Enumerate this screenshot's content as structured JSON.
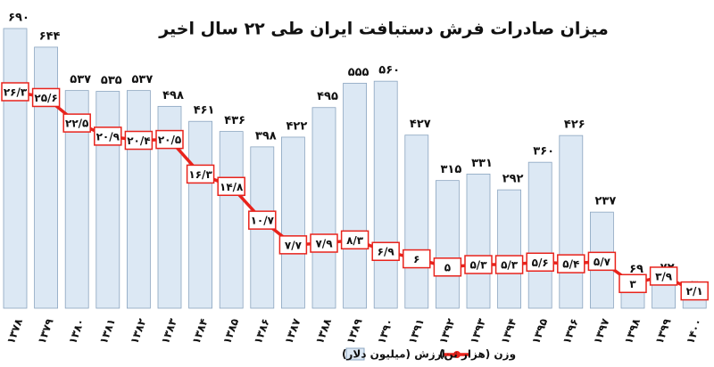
{
  "chart_data": {
    "type": "bar-line",
    "title": "میزان صادرات فرش دستبافت ایران طی ۲۲ سال اخیر",
    "categories": [
      "۱۳۷۸",
      "۱۳۷۹",
      "۱۳۸۰",
      "۱۳۸۱",
      "۱۳۸۲",
      "۱۳۸۳",
      "۱۳۸۴",
      "۱۳۸۵",
      "۱۳۸۶",
      "۱۳۸۷",
      "۱۳۸۸",
      "۱۳۸۹",
      "۱۳۹۰",
      "۱۳۹۱",
      "۱۳۹۲",
      "۱۳۹۳",
      "۱۳۹۴",
      "۱۳۹۵",
      "۱۳۹۶",
      "۱۳۹۷",
      "۱۳۹۸",
      "۱۳۹۹",
      "۱۴۰۰"
    ],
    "series": [
      {
        "name": "ارزش (میلیون دلار)",
        "color": "#dce8f4",
        "values": [
          690,
          644,
          537,
          535,
          537,
          498,
          461,
          436,
          398,
          422,
          495,
          555,
          560,
          427,
          315,
          331,
          292,
          360,
          426,
          237,
          69,
          72,
          30
        ],
        "value_labels": [
          "۶۹۰",
          "۶۴۴",
          "۵۳۷",
          "۵۳۵",
          "۵۳۷",
          "۴۹۸",
          "۴۶۱",
          "۴۳۶",
          "۳۹۸",
          "۴۲۲",
          "۴۹۵",
          "۵۵۵",
          "۵۶۰",
          "۴۲۷",
          "۳۱۵",
          "۳۳۱",
          "۲۹۲",
          "۳۶۰",
          "۴۲۶",
          "۲۳۷",
          "۶۹",
          "۷۲",
          "۳۰"
        ]
      },
      {
        "name": "وزن (هزار تن)",
        "color": "#e8231c",
        "axis": "y2",
        "values": [
          26.3,
          25.6,
          22.5,
          20.9,
          20.4,
          20.5,
          16.3,
          14.8,
          10.7,
          7.7,
          7.9,
          8.3,
          6.9,
          6,
          5,
          5.3,
          5.3,
          5.6,
          5.4,
          5.7,
          3,
          3.9,
          2.1
        ],
        "value_labels": [
          "۲۶/۳",
          "۲۵/۶",
          "۲۲/۵",
          "۲۰/۹",
          "۲۰/۴",
          "۲۰/۵",
          "۱۶/۳",
          "۱۴/۸",
          "۱۰/۷",
          "۷/۷",
          "۷/۹",
          "۸/۳",
          "۶/۹",
          "۶",
          "۵",
          "۵/۳",
          "۵/۳",
          "۵/۶",
          "۵/۴",
          "۵/۷",
          "۳",
          "۳/۹",
          "۲/۱"
        ]
      }
    ]
  }
}
